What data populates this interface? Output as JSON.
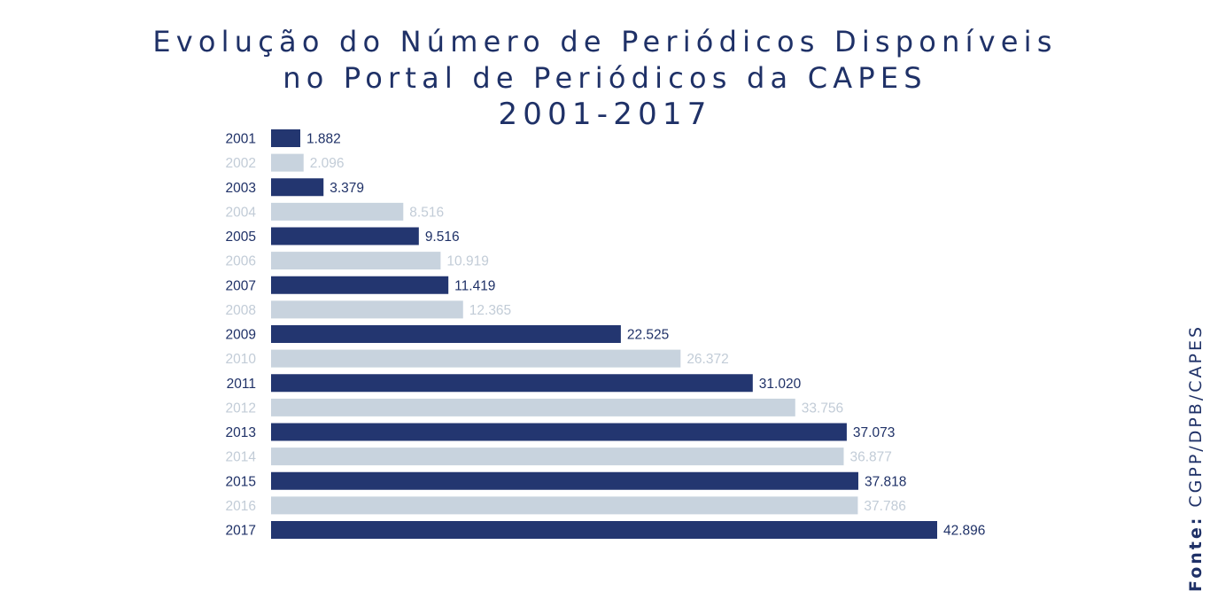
{
  "title_lines": [
    "Evolução do Número de Periódicos Disponíveis",
    "no Portal de Periódicos da CAPES",
    "2001-2017"
  ],
  "source": {
    "label": "Fonte:",
    "value": "CGPP/DPB/CAPES"
  },
  "colors": {
    "title": "#1f3167",
    "bar_dark": "#233670",
    "bar_light": "#c8d3de",
    "label_dark": "#1f3167",
    "label_light": "#c2ccd7"
  },
  "chart_data": {
    "type": "bar",
    "orientation": "horizontal",
    "title": "Evolução do Número de Periódicos Disponíveis no Portal de Periódicos da CAPES 2001-2017",
    "xlabel": "",
    "ylabel": "",
    "categories": [
      "2001",
      "2002",
      "2003",
      "2004",
      "2005",
      "2006",
      "2007",
      "2008",
      "2009",
      "2010",
      "2011",
      "2012",
      "2013",
      "2014",
      "2015",
      "2016",
      "2017"
    ],
    "values": [
      1882,
      2096,
      3379,
      8516,
      9516,
      10919,
      11419,
      12365,
      22525,
      26372,
      31020,
      33756,
      37073,
      36877,
      37818,
      37786,
      42896
    ],
    "value_labels": [
      "1.882",
      "2.096",
      "3.379",
      "8.516",
      "9.516",
      "10.919",
      "11.419",
      "12.365",
      "22.525",
      "26.372",
      "31.020",
      "33.756",
      "37.073",
      "36.877",
      "37.818",
      "37.786",
      "42.896"
    ],
    "xlim": [
      0,
      42896
    ],
    "grid": false,
    "legend": "none",
    "bar_color_pattern": "alternating dark/light"
  }
}
